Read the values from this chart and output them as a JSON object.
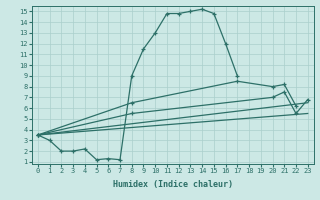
{
  "xlabel": "Humidex (Indice chaleur)",
  "background_color": "#cce8e5",
  "grid_color": "#aacfcc",
  "line_color": "#2d7068",
  "xlim": [
    -0.5,
    23.5
  ],
  "ylim": [
    0.8,
    15.5
  ],
  "xticks": [
    0,
    1,
    2,
    3,
    4,
    5,
    6,
    7,
    8,
    9,
    10,
    11,
    12,
    13,
    14,
    15,
    16,
    17,
    18,
    19,
    20,
    21,
    22,
    23
  ],
  "yticks": [
    1,
    2,
    3,
    4,
    5,
    6,
    7,
    8,
    9,
    10,
    11,
    12,
    13,
    14,
    15
  ],
  "curve_bell_x": [
    0,
    1,
    2,
    3,
    4,
    5,
    6,
    7,
    8,
    9,
    10,
    11,
    12,
    13,
    14,
    15,
    16,
    17
  ],
  "curve_bell_y": [
    3.5,
    3.0,
    2.0,
    2.0,
    2.2,
    1.2,
    1.3,
    1.2,
    9.0,
    11.5,
    13.0,
    14.8,
    14.8,
    15.0,
    15.2,
    14.8,
    12.0,
    9.0
  ],
  "curve_line1_x": [
    0,
    8,
    17,
    20,
    21,
    22
  ],
  "curve_line1_y": [
    3.5,
    6.5,
    8.5,
    8.0,
    8.2,
    6.2
  ],
  "curve_line2_x": [
    0,
    8,
    20,
    21,
    22,
    23
  ],
  "curve_line2_y": [
    3.5,
    5.5,
    7.0,
    7.5,
    5.5,
    6.8
  ],
  "curve_line3_x": [
    0,
    23
  ],
  "curve_line3_y": [
    3.5,
    6.5
  ],
  "curve_line4_x": [
    0,
    23
  ],
  "curve_line4_y": [
    3.5,
    5.5
  ]
}
